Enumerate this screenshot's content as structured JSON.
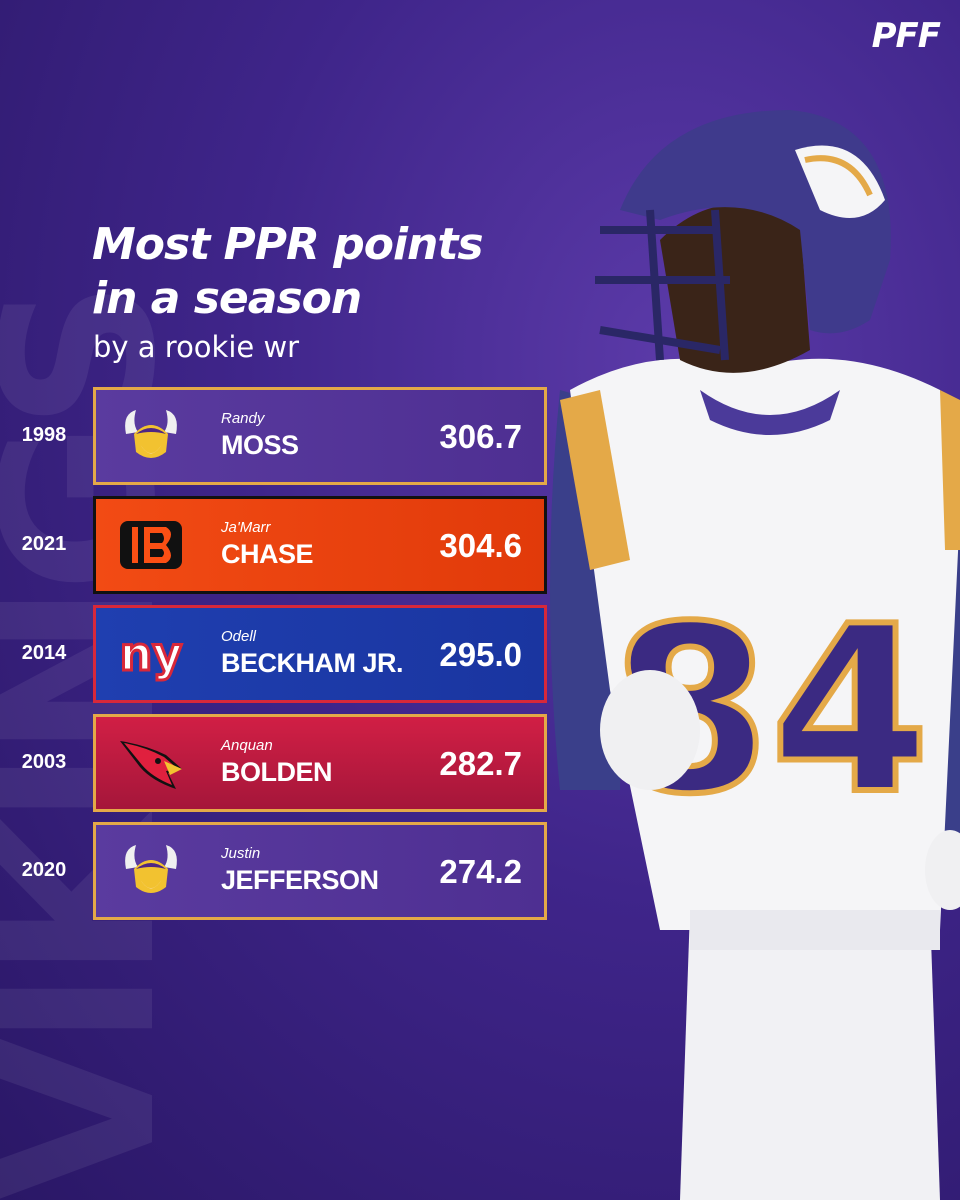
{
  "background_word": "VIKINGS",
  "brand": "PFF",
  "title_line1": "Most PPR points",
  "title_line2": "in a season",
  "subtitle": "by a rookie wr",
  "player_jersey_number": "84",
  "colors": {
    "background": "#3f258a",
    "vikings": "#4f2683",
    "bengals": "#fb4f14",
    "giants": "#0b2265",
    "cardinals": "#97233f",
    "gold_border": "#e4a948"
  },
  "rows": [
    {
      "year": "1998",
      "first": "Randy",
      "last": "MOSS",
      "points": "306.7",
      "team": "Vikings",
      "logo_icon": "vikings-logo-icon"
    },
    {
      "year": "2021",
      "first": "Ja'Marr",
      "last": "CHASE",
      "points": "304.6",
      "team": "Bengals",
      "logo_icon": "bengals-logo-icon"
    },
    {
      "year": "2014",
      "first": "Odell",
      "last": "BECKHAM JR.",
      "points": "295.0",
      "team": "Giants",
      "logo_icon": "giants-logo-icon"
    },
    {
      "year": "2003",
      "first": "Anquan",
      "last": "BOLDEN",
      "points": "282.7",
      "team": "Cardinals",
      "logo_icon": "cardinals-logo-icon"
    },
    {
      "year": "2020",
      "first": "Justin",
      "last": "JEFFERSON",
      "points": "274.2",
      "team": "Vikings",
      "logo_icon": "vikings-logo-icon"
    }
  ]
}
